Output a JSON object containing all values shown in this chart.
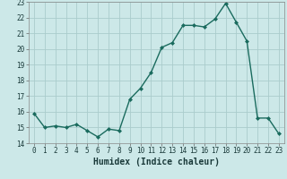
{
  "x": [
    0,
    1,
    2,
    3,
    4,
    5,
    6,
    7,
    8,
    9,
    10,
    11,
    12,
    13,
    14,
    15,
    16,
    17,
    18,
    19,
    20,
    21,
    22,
    23
  ],
  "y": [
    15.9,
    15.0,
    15.1,
    15.0,
    15.2,
    14.8,
    14.4,
    14.9,
    14.8,
    16.8,
    17.5,
    18.5,
    20.1,
    20.4,
    21.5,
    21.5,
    21.4,
    21.9,
    22.9,
    21.7,
    20.5,
    15.6,
    15.6,
    14.6
  ],
  "line_color": "#1a6b5e",
  "marker": "D",
  "marker_size": 2.0,
  "bg_color": "#cce8e8",
  "grid_color": "#aacccc",
  "xlabel": "Humidex (Indice chaleur)",
  "ylim": [
    14,
    23
  ],
  "xlim": [
    -0.5,
    23.5
  ],
  "yticks": [
    14,
    15,
    16,
    17,
    18,
    19,
    20,
    21,
    22,
    23
  ],
  "xticks": [
    0,
    1,
    2,
    3,
    4,
    5,
    6,
    7,
    8,
    9,
    10,
    11,
    12,
    13,
    14,
    15,
    16,
    17,
    18,
    19,
    20,
    21,
    22,
    23
  ],
  "tick_fontsize": 5.5,
  "xlabel_fontsize": 7.0,
  "line_width": 1.0
}
